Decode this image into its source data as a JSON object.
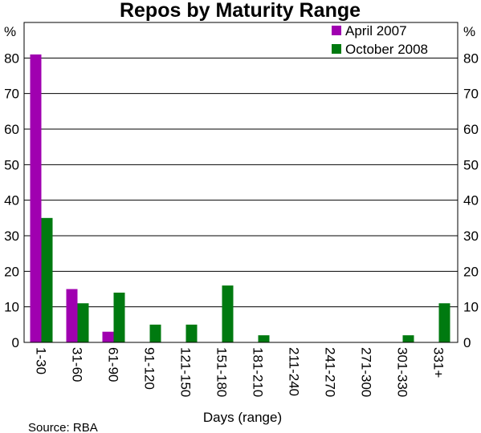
{
  "chart_data": {
    "type": "bar",
    "title": "Repos by Maturity Range",
    "unit_left": "%",
    "unit_right": "%",
    "xlabel": "Days (range)",
    "source": "Source:  RBA",
    "ylim": [
      0,
      90
    ],
    "yticks": [
      0,
      10,
      20,
      30,
      40,
      50,
      60,
      70,
      80
    ],
    "grid": true,
    "legend_position": "top-right",
    "categories": [
      "1-30",
      "31-60",
      "61-90",
      "91-120",
      "121-150",
      "151-180",
      "181-210",
      "211-240",
      "241-270",
      "271-300",
      "301-330",
      "331+"
    ],
    "series": [
      {
        "name": "April 2007",
        "color": "#a000b0",
        "values": [
          81,
          15,
          3,
          0,
          0,
          0,
          0,
          0,
          0,
          0,
          0,
          0
        ]
      },
      {
        "name": "October 2008",
        "color": "#007a10",
        "values": [
          35,
          11,
          14,
          5,
          5,
          16,
          2,
          0,
          0,
          0,
          2,
          11
        ]
      }
    ]
  }
}
